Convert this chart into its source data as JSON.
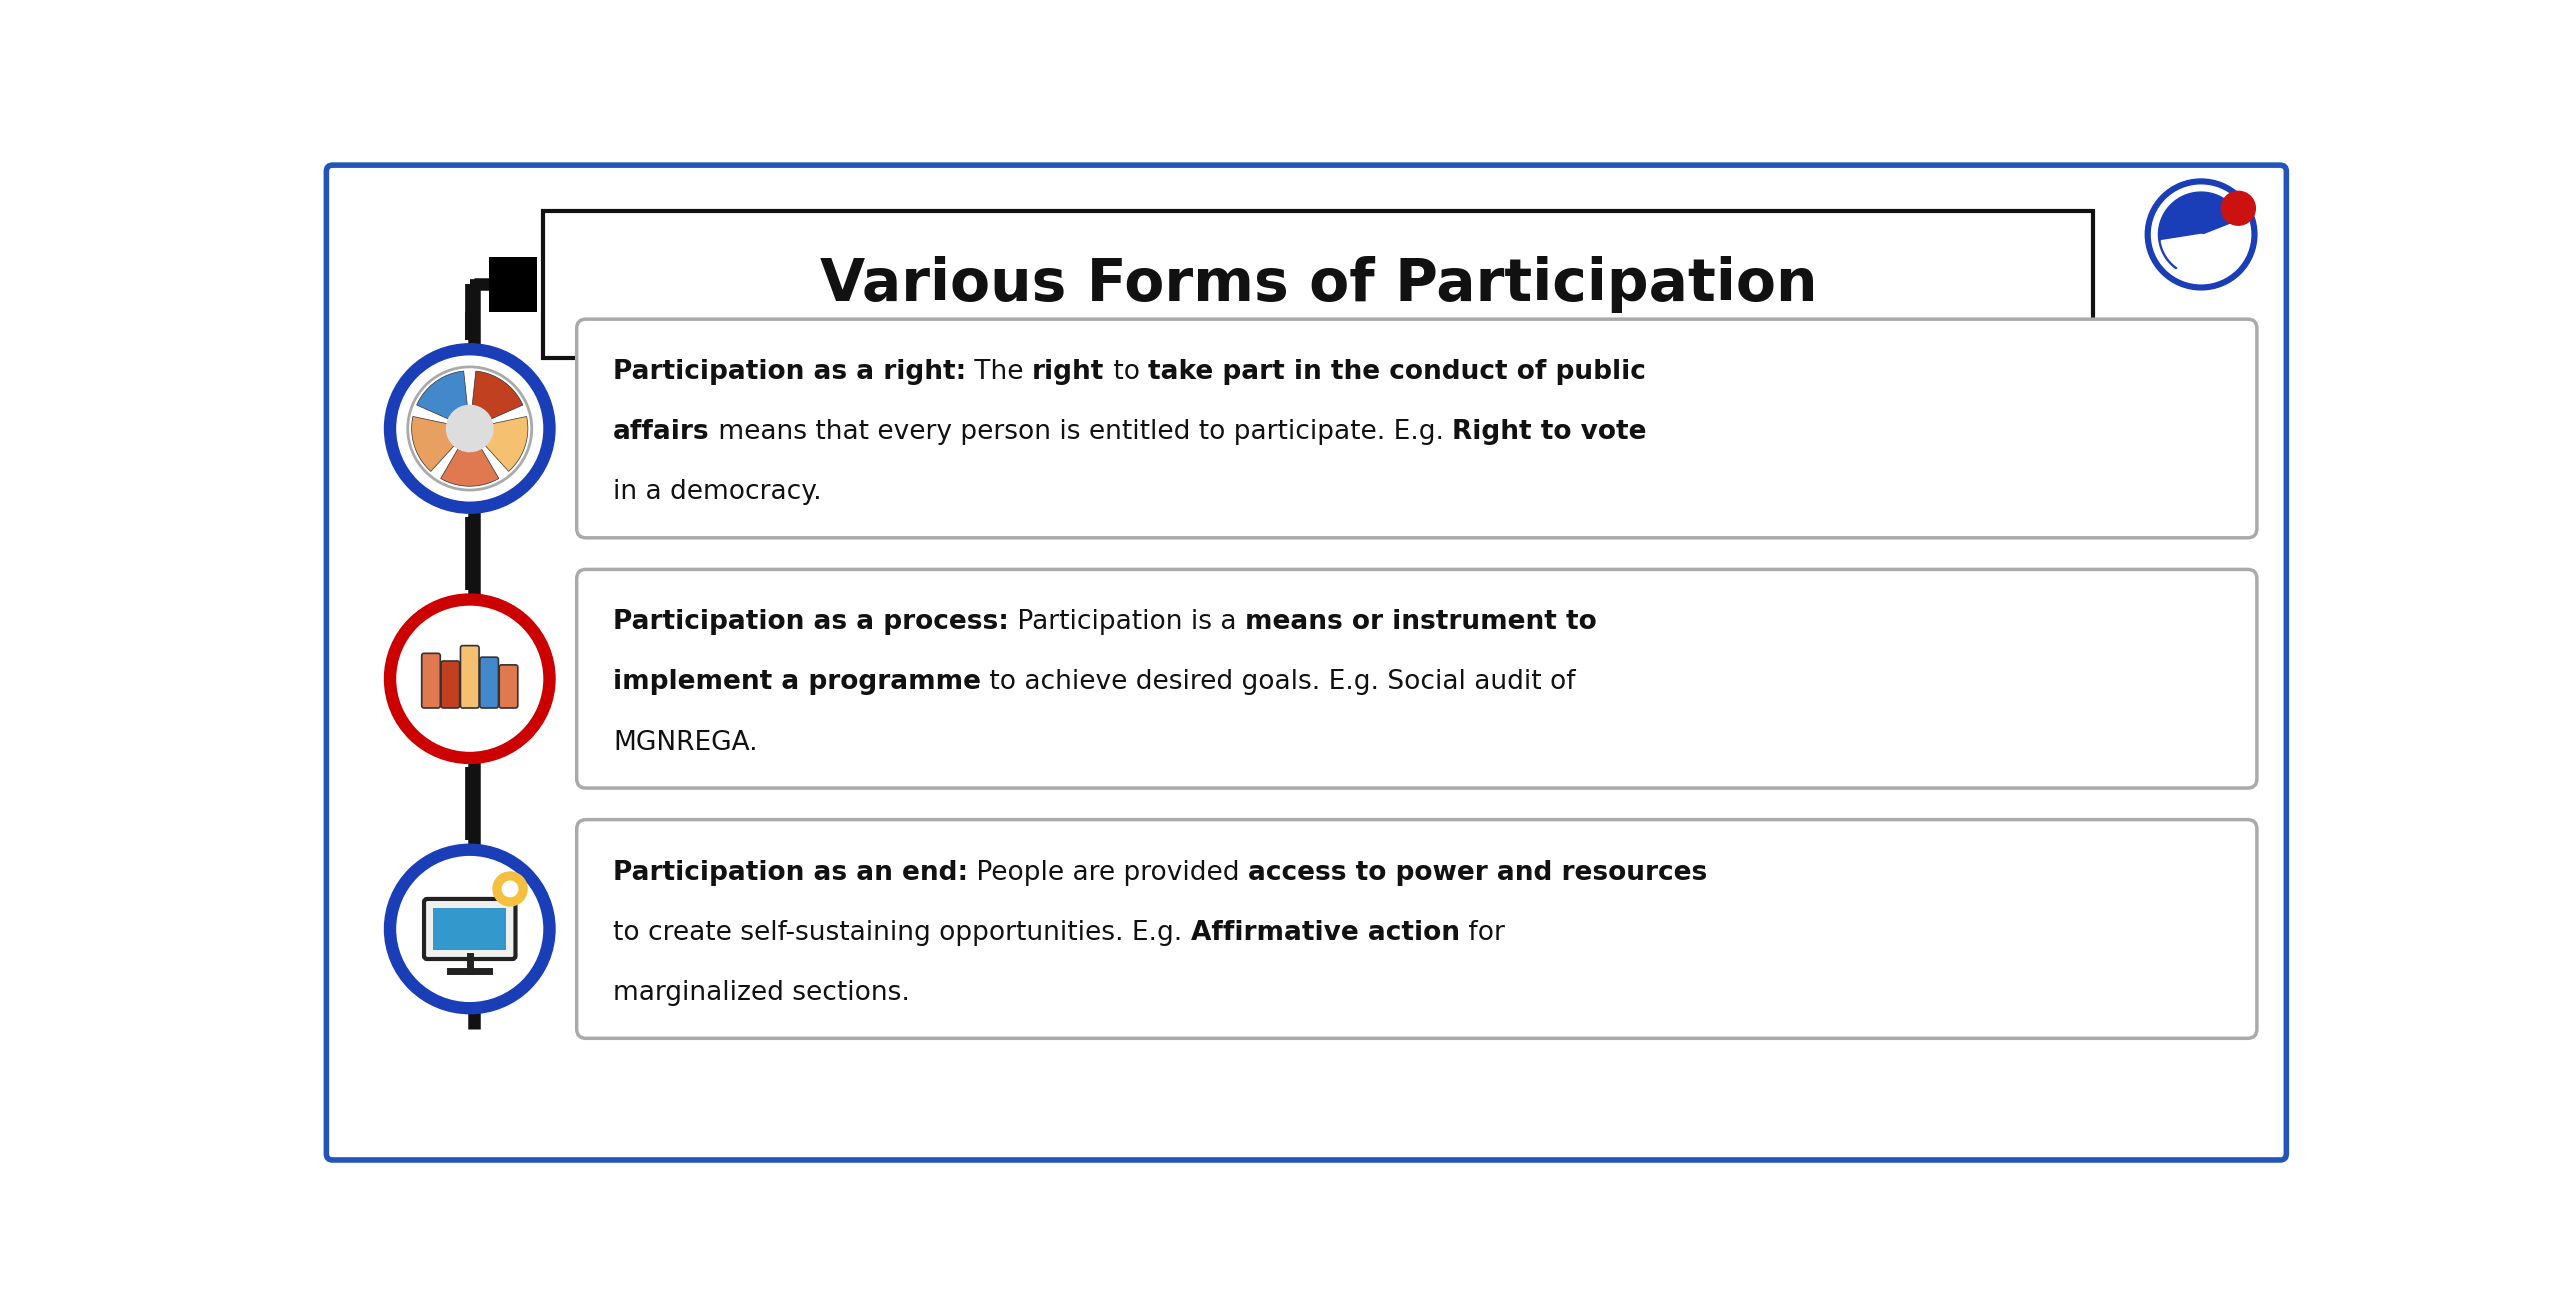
{
  "title": "Various Forms of Participation",
  "background_color": "#ffffff",
  "border_color": "#2255bb",
  "title_font_size": 42,
  "text_font_size": 19,
  "items": [
    {
      "circle_color": "#1a3eb8",
      "lines": [
        [
          {
            "text": "Participation as a right:",
            "bold": true
          },
          {
            "text": " The ",
            "bold": false
          },
          {
            "text": "right",
            "bold": true
          },
          {
            "text": " to ",
            "bold": false
          },
          {
            "text": "take part in the conduct of public",
            "bold": true
          }
        ],
        [
          {
            "text": "affairs",
            "bold": true
          },
          {
            "text": " means that every person is entitled to participate. E.g. ",
            "bold": false
          },
          {
            "text": "Right to vote",
            "bold": true
          }
        ],
        [
          {
            "text": "in a democracy.",
            "bold": false
          }
        ]
      ]
    },
    {
      "circle_color": "#cc0000",
      "lines": [
        [
          {
            "text": "Participation as a process:",
            "bold": true
          },
          {
            "text": " Participation is a ",
            "bold": false
          },
          {
            "text": "means or instrument to",
            "bold": true
          }
        ],
        [
          {
            "text": "implement a programme",
            "bold": true
          },
          {
            "text": " to achieve desired goals. E.g. Social audit of",
            "bold": false
          }
        ],
        [
          {
            "text": "MGNREGA.",
            "bold": false
          }
        ]
      ]
    },
    {
      "circle_color": "#1a3eb8",
      "lines": [
        [
          {
            "text": "Participation as an end:",
            "bold": true
          },
          {
            "text": " People are provided ",
            "bold": false
          },
          {
            "text": "access to power and resources",
            "bold": true
          }
        ],
        [
          {
            "text": "to create self-sustaining opportunities. E.g. ",
            "bold": false
          },
          {
            "text": "Affirmative action",
            "bold": true
          },
          {
            "text": " for",
            "bold": false
          }
        ],
        [
          {
            "text": "marginalized sections.",
            "bold": false
          }
        ]
      ]
    }
  ]
}
